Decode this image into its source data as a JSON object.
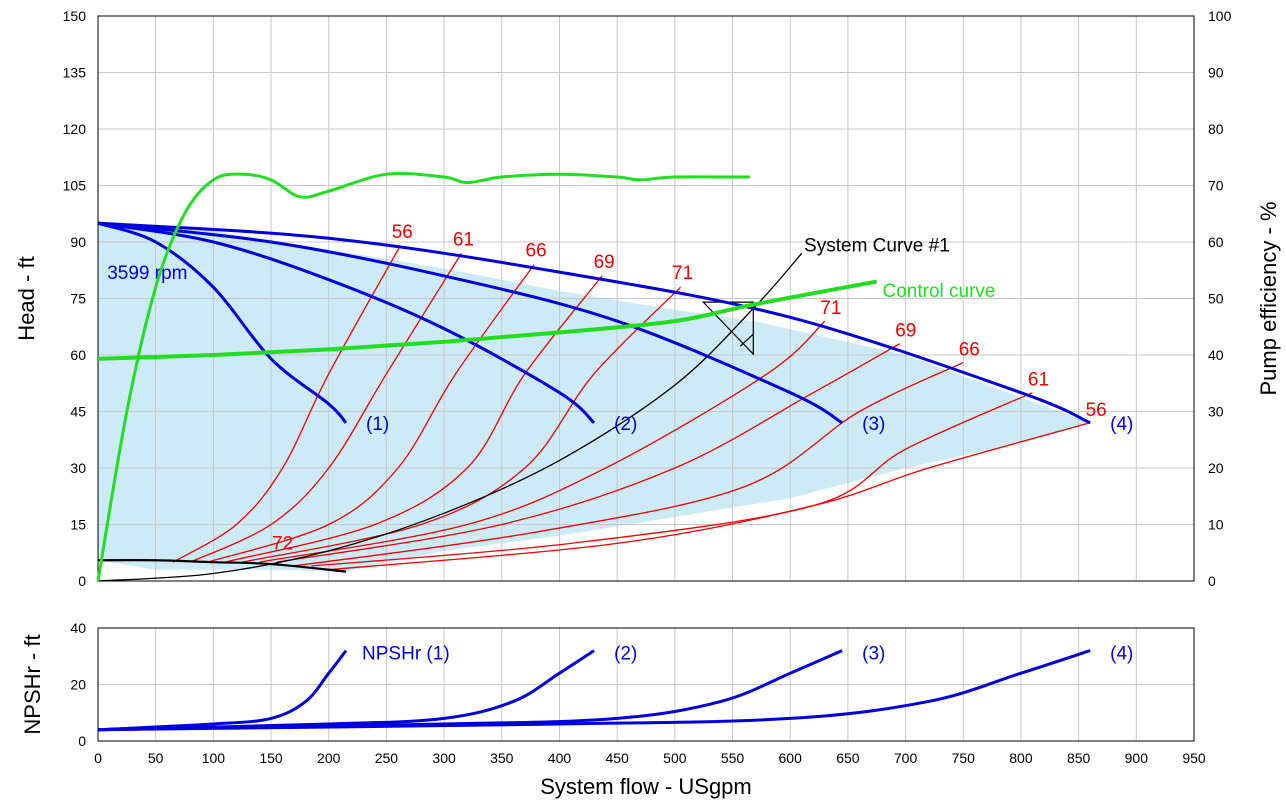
{
  "chart_data": [
    {
      "type": "line",
      "title": "",
      "xlabel": "System flow - USgpm",
      "ylabel": "Head - ft",
      "y2label": "Pump efficiency - %",
      "xlim": [
        0,
        950
      ],
      "ylim": [
        0,
        150
      ],
      "y2lim": [
        0,
        100
      ],
      "x_ticks": [
        "0",
        "50",
        "100",
        "150",
        "200",
        "250",
        "300",
        "350",
        "400",
        "450",
        "500",
        "550",
        "600",
        "650",
        "700",
        "750",
        "800",
        "850",
        "900",
        "950"
      ],
      "y_ticks": [
        "0",
        "15",
        "30",
        "45",
        "60",
        "75",
        "90",
        "105",
        "120",
        "135",
        "150"
      ],
      "y2_ticks": [
        "0",
        "10",
        "20",
        "30",
        "40",
        "50",
        "60",
        "70",
        "80",
        "90",
        "100"
      ],
      "grid": true,
      "colors": {
        "pump_curve": "#0000dd",
        "control_curve": "#22dd22",
        "efficiency": "#22dd22",
        "iso_efficiency": "#ee0000",
        "system_curve": "#000000",
        "operating_region": "#cdeaf7",
        "min_flow": "#000000"
      },
      "speed_label": "3599 rpm",
      "pump_curves": [
        {
          "label": "(1)",
          "x": [
            0,
            50,
            100,
            150,
            200,
            215
          ],
          "y": [
            95,
            90,
            78,
            59,
            47,
            42
          ]
        },
        {
          "label": "(2)",
          "x": [
            0,
            100,
            200,
            300,
            400,
            430
          ],
          "y": [
            95,
            90,
            80,
            67,
            50,
            42
          ]
        },
        {
          "label": "(3)",
          "x": [
            0,
            150,
            300,
            450,
            600,
            645
          ],
          "y": [
            95,
            90,
            81,
            69,
            50,
            42
          ]
        },
        {
          "label": "(4)",
          "x": [
            0,
            200,
            400,
            600,
            800,
            860
          ],
          "y": [
            95,
            91,
            82,
            70,
            50,
            42
          ]
        }
      ],
      "efficiency_curve": {
        "x": [
          0,
          25,
          50,
          75,
          100,
          125,
          150,
          175,
          200,
          250,
          300,
          320,
          350,
          400,
          450,
          470,
          500,
          565
        ],
        "y_percent": [
          0,
          30,
          52,
          65,
          71,
          72,
          71,
          68,
          69,
          72,
          71.5,
          70.5,
          71.5,
          72,
          71.5,
          71,
          71.5,
          71.5
        ]
      },
      "control_curve": {
        "label": "Control curve",
        "x": [
          0,
          100,
          200,
          300,
          400,
          500,
          570,
          675
        ],
        "y": [
          59,
          60,
          61.5,
          63.5,
          66,
          69,
          73.5,
          79.5
        ]
      },
      "system_curve": {
        "label": "System Curve #1",
        "x": [
          0,
          100,
          200,
          300,
          400,
          500,
          570,
          610
        ],
        "y": [
          0,
          2,
          8,
          18,
          32,
          52,
          73,
          87
        ]
      },
      "min_flow_curve": {
        "x": [
          0,
          50,
          100,
          150,
          215
        ],
        "y": [
          5.5,
          5.5,
          5,
          4.5,
          2.5
        ]
      },
      "operating_point": {
        "x": 568,
        "y": 73.5
      },
      "iso_efficiency_upper": [
        {
          "label": "56",
          "x": [
            65,
            120,
            160,
            200,
            262
          ],
          "y": [
            5,
            15,
            30,
            55,
            89
          ]
        },
        {
          "label": "61",
          "x": [
            80,
            150,
            200,
            250,
            315
          ],
          "y": [
            5,
            15,
            30,
            55,
            87
          ]
        },
        {
          "label": "66",
          "x": [
            95,
            200,
            260,
            310,
            378
          ],
          "y": [
            5,
            15,
            30,
            55,
            84
          ]
        },
        {
          "label": "69",
          "x": [
            110,
            240,
            320,
            370,
            437
          ],
          "y": [
            5,
            15,
            30,
            55,
            81
          ]
        },
        {
          "label": "71",
          "x": [
            125,
            280,
            370,
            430,
            505
          ],
          "y": [
            5,
            15,
            30,
            55,
            78
          ]
        }
      ],
      "iso_efficiency_lower": [
        {
          "label": "71",
          "x": [
            140,
            320,
            440,
            580,
            630
          ],
          "y": [
            5,
            15,
            30,
            55,
            69
          ]
        },
        {
          "label": "69",
          "x": [
            155,
            350,
            500,
            620,
            695
          ],
          "y": [
            5,
            15,
            30,
            50,
            63
          ]
        },
        {
          "label": "66",
          "x": [
            170,
            380,
            560,
            660,
            750
          ],
          "y": [
            4,
            13,
            25,
            45,
            58
          ]
        },
        {
          "label": "61",
          "x": [
            185,
            410,
            620,
            700,
            810
          ],
          "y": [
            4,
            10,
            20,
            35,
            50
          ]
        },
        {
          "label": "56",
          "x": [
            200,
            450,
            620,
            720,
            860
          ],
          "y": [
            3,
            10,
            20,
            30,
            42
          ]
        }
      ],
      "iso_label_best": "72",
      "operating_region": {
        "x": [
          0,
          0,
          100,
          200,
          300,
          400,
          500,
          568,
          700,
          860,
          820,
          700,
          600,
          500,
          400,
          300,
          215,
          150,
          50
        ],
        "y": [
          5.5,
          95,
          93,
          88,
          83,
          77,
          72,
          69,
          60,
          42,
          38,
          30,
          22,
          17,
          12,
          8,
          2.5,
          3,
          3
        ]
      }
    },
    {
      "type": "line",
      "title": "",
      "xlabel": "System flow - USgpm",
      "ylabel": "NPSHr - ft",
      "xlim": [
        0,
        950
      ],
      "ylim": [
        0,
        40
      ],
      "x_ticks": [
        "0",
        "50",
        "100",
        "150",
        "200",
        "250",
        "300",
        "350",
        "400",
        "450",
        "500",
        "550",
        "600",
        "650",
        "700",
        "750",
        "800",
        "850",
        "900",
        "950"
      ],
      "y_ticks": [
        "0",
        "20",
        "40"
      ],
      "grid": true,
      "series": [
        {
          "label": "NPSHr (1)",
          "x": [
            0,
            100,
            150,
            180,
            200,
            215
          ],
          "y": [
            4,
            6,
            8,
            14,
            24,
            32
          ]
        },
        {
          "label": "(2)",
          "x": [
            0,
            200,
            300,
            360,
            400,
            430
          ],
          "y": [
            4,
            6,
            8,
            14,
            24,
            32
          ]
        },
        {
          "label": "(3)",
          "x": [
            0,
            300,
            450,
            540,
            600,
            645
          ],
          "y": [
            4,
            6,
            8,
            14,
            24,
            32
          ]
        },
        {
          "label": "(4)",
          "x": [
            0,
            400,
            600,
            720,
            800,
            860
          ],
          "y": [
            4,
            6,
            8,
            14,
            24,
            32
          ]
        }
      ]
    }
  ]
}
